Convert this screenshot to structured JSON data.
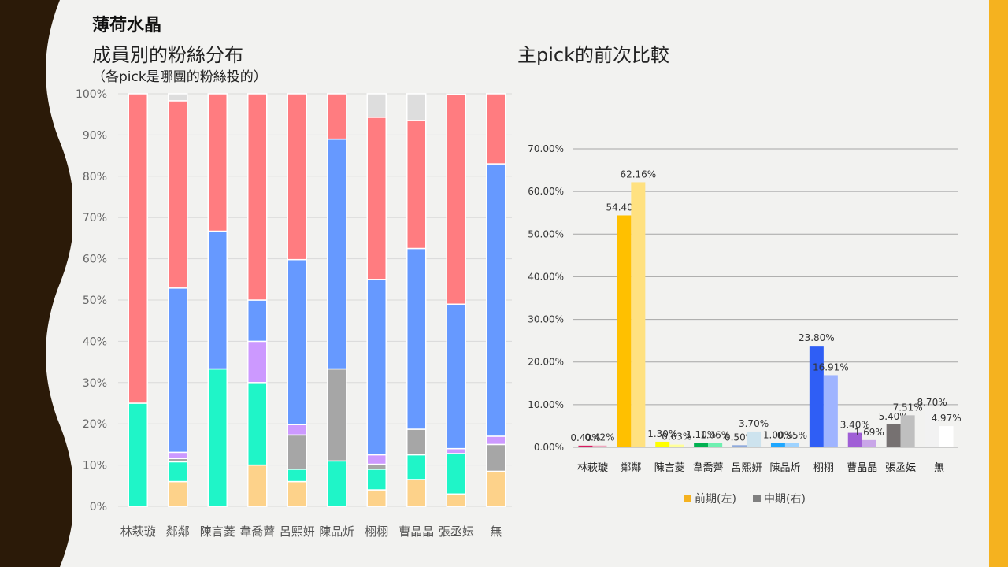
{
  "slide": {
    "title": "薄荷水晶",
    "left_title": "成員別的粉絲分布",
    "left_note": "（各pick是哪團的粉絲投的）",
    "right_title": "主pick的前次比較"
  },
  "colors": {
    "deco_brown": "#2b1a08",
    "accent_orange": "#f5b21f",
    "background": "#f2f2f0"
  },
  "chart_data": [
    {
      "type": "bar",
      "stacked": true,
      "title": "",
      "categories": [
        "林萩璇",
        "鄰鄰",
        "陳言菱",
        "韋喬薺",
        "呂熙妍",
        "陳品炘",
        "栩栩",
        "曹晶晶",
        "張丞妘",
        "無"
      ],
      "ylim": [
        0,
        100
      ],
      "yticks": [
        "0%",
        "10%",
        "20%",
        "30%",
        "40%",
        "50%",
        "60%",
        "70%",
        "80%",
        "90%",
        "100%"
      ],
      "grid": true,
      "legend": "none",
      "series": [
        {
          "color": "#fdd28a",
          "values": [
            0,
            6,
            0,
            10,
            6,
            0,
            4,
            6.5,
            3,
            8.5
          ]
        },
        {
          "color": "#1ff5c8",
          "values": [
            25,
            4.8,
            33.3,
            20,
            3,
            11,
            5,
            6,
            9.8,
            0
          ]
        },
        {
          "color": "#a6a6a6",
          "values": [
            0,
            0.8,
            0,
            0,
            8.3,
            22.3,
            1.2,
            6.2,
            0,
            6.5
          ]
        },
        {
          "color": "#cc99ff",
          "values": [
            0,
            1.5,
            0,
            10,
            2.5,
            0,
            2.3,
            0,
            1.2,
            2
          ]
        },
        {
          "color": "#6699ff",
          "values": [
            0,
            39.8,
            33.4,
            10,
            40,
            55.7,
            42.5,
            43.8,
            35,
            66
          ]
        },
        {
          "color": "#ff7c80",
          "values": [
            75,
            45.4,
            33.3,
            50,
            40.2,
            11,
            39.3,
            31,
            50.9,
            17
          ]
        },
        {
          "color": "#dddddd",
          "values": [
            0,
            1.7,
            0,
            0,
            0,
            0,
            5.7,
            6.5,
            0,
            0
          ]
        }
      ]
    },
    {
      "type": "bar",
      "title": "",
      "categories": [
        "林萩璇",
        "鄰鄰",
        "陳言菱",
        "韋喬薺",
        "呂熙妍",
        "陳品炘",
        "栩栩",
        "曹晶晶",
        "張丞妘",
        "無"
      ],
      "ylim": [
        0,
        70
      ],
      "yticks": [
        "0.00%",
        "10.00%",
        "20.00%",
        "30.00%",
        "40.00%",
        "50.00%",
        "60.00%",
        "70.00%"
      ],
      "grid": true,
      "legend": "bottom",
      "series": [
        {
          "name": "前期(左)",
          "legend_color": "#f5b21f",
          "values": [
            0.4,
            54.4,
            1.3,
            1.1,
            0.5,
            1.0,
            23.8,
            3.4,
            5.4,
            8.7
          ],
          "labels": [
            "0.40%",
            "54.40%",
            "1.30%",
            "1.10%",
            "0.50%",
            "1.00%",
            "23.80%",
            "3.40%",
            "5.40%",
            "8.70%"
          ],
          "colors": [
            "#d81b60",
            "#ffc000",
            "#ffff00",
            "#00b050",
            "#8faadc",
            "#1ea7ff",
            "#2f5ef5",
            "#a05fd6",
            "#767171",
            "#f2f2f2"
          ]
        },
        {
          "name": "中期(右)",
          "legend_color": "#7f7f7f",
          "values": [
            0.42,
            62.16,
            0.63,
            1.06,
            3.7,
            0.95,
            16.91,
            1.69,
            7.51,
            4.97
          ],
          "labels": [
            "0.42%",
            "62.16%",
            "0.63%",
            "1.06%",
            "3.70%",
            "0.95%",
            "16.91%",
            "1.69%",
            "7.51%",
            "4.97%"
          ],
          "colors": [
            "#f0a8c0",
            "#ffe180",
            "#ffff99",
            "#6ef0b0",
            "#cde3ee",
            "#9ed3ff",
            "#9fb4ff",
            "#c9a6e8",
            "#bfbfbf",
            "#ffffff"
          ]
        }
      ]
    }
  ]
}
